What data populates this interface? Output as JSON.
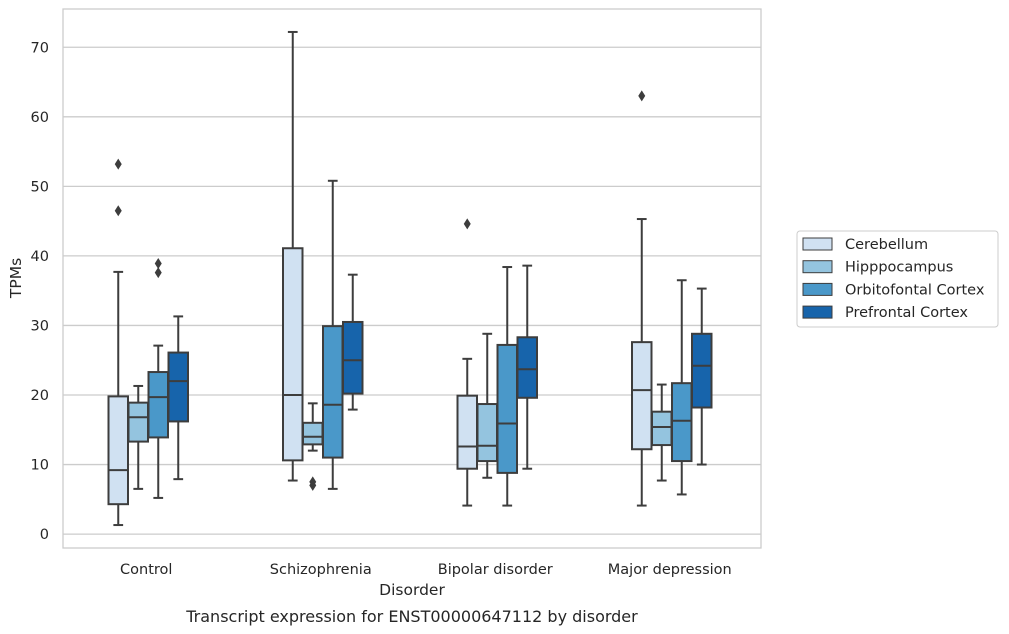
{
  "caption": "Transcript expression for ENST00000647112 by disorder",
  "chart_data": {
    "type": "box",
    "xlabel": "Disorder",
    "ylabel": "TPMs",
    "ylim": [
      -2,
      75.5
    ],
    "yticks": [
      0,
      10,
      20,
      30,
      40,
      50,
      60,
      70
    ],
    "grid": "horizontal",
    "legend_position": "right",
    "categories": [
      "Control",
      "Schizophrenia",
      "Bipolar disorder",
      "Major depression"
    ],
    "series": [
      {
        "name": "Cerebellum",
        "color": "#d0e1f2",
        "boxes": [
          {
            "whisker_low": 1.3,
            "q1": 4.3,
            "median": 9.2,
            "q3": 19.8,
            "whisker_high": 37.7,
            "outliers": [
              46.5,
              53.2
            ]
          },
          {
            "whisker_low": 7.7,
            "q1": 10.6,
            "median": 20.0,
            "q3": 41.1,
            "whisker_high": 72.2,
            "outliers": []
          },
          {
            "whisker_low": 4.1,
            "q1": 9.4,
            "median": 12.6,
            "q3": 19.9,
            "whisker_high": 25.2,
            "outliers": [
              44.6
            ]
          },
          {
            "whisker_low": 4.1,
            "q1": 12.2,
            "median": 20.7,
            "q3": 27.6,
            "whisker_high": 45.3,
            "outliers": [
              63.0
            ]
          }
        ]
      },
      {
        "name": "Hipppocampus",
        "color": "#94c4df",
        "boxes": [
          {
            "whisker_low": 6.5,
            "q1": 13.3,
            "median": 16.8,
            "q3": 18.9,
            "whisker_high": 21.3,
            "outliers": []
          },
          {
            "whisker_low": 12.0,
            "q1": 12.9,
            "median": 14.0,
            "q3": 16.0,
            "whisker_high": 18.8,
            "outliers": [
              7.0,
              7.5
            ]
          },
          {
            "whisker_low": 8.1,
            "q1": 10.5,
            "median": 12.7,
            "q3": 18.7,
            "whisker_high": 28.8,
            "outliers": []
          },
          {
            "whisker_low": 7.7,
            "q1": 12.8,
            "median": 15.4,
            "q3": 17.6,
            "whisker_high": 21.5,
            "outliers": []
          }
        ]
      },
      {
        "name": "Orbitofontal Cortex",
        "color": "#4a98c9",
        "boxes": [
          {
            "whisker_low": 5.2,
            "q1": 13.9,
            "median": 19.7,
            "q3": 23.3,
            "whisker_high": 27.1,
            "outliers": [
              37.6,
              38.9
            ]
          },
          {
            "whisker_low": 6.5,
            "q1": 11.0,
            "median": 18.6,
            "q3": 29.9,
            "whisker_high": 50.8,
            "outliers": []
          },
          {
            "whisker_low": 4.1,
            "q1": 8.8,
            "median": 15.9,
            "q3": 27.2,
            "whisker_high": 38.4,
            "outliers": []
          },
          {
            "whisker_low": 5.7,
            "q1": 10.5,
            "median": 16.3,
            "q3": 21.7,
            "whisker_high": 36.5,
            "outliers": []
          }
        ]
      },
      {
        "name": "Prefrontal Cortex",
        "color": "#1764ab",
        "boxes": [
          {
            "whisker_low": 7.9,
            "q1": 16.2,
            "median": 22.0,
            "q3": 26.1,
            "whisker_high": 31.3,
            "outliers": []
          },
          {
            "whisker_low": 17.9,
            "q1": 20.2,
            "median": 25.0,
            "q3": 30.5,
            "whisker_high": 37.3,
            "outliers": []
          },
          {
            "whisker_low": 9.4,
            "q1": 19.6,
            "median": 23.7,
            "q3": 28.3,
            "whisker_high": 38.6,
            "outliers": []
          },
          {
            "whisker_low": 10.0,
            "q1": 18.2,
            "median": 24.2,
            "q3": 28.8,
            "whisker_high": 35.3,
            "outliers": []
          }
        ]
      }
    ]
  }
}
